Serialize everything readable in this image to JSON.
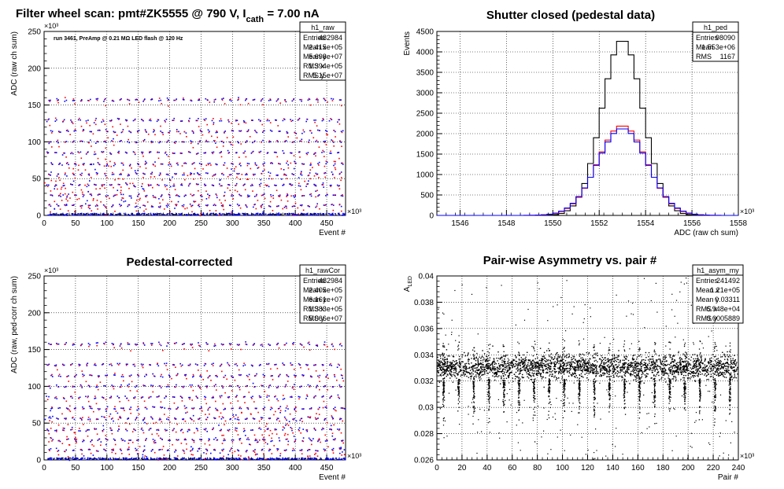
{
  "chart_data": [
    {
      "type": "scatter",
      "title": "Filter wheel scan: pmt#ZK5555 @   790 V, I",
      "title_sub": "cath",
      "title_tail": " = 7.00 nA",
      "annotation": "run 3461, PreAmp @ 0.21 MΩ  LED flash @  120 Hz",
      "xlabel": "Event #",
      "ylabel": "ADC (raw ch sum)",
      "x_exponent": "×10³",
      "y_exponent": "×10³",
      "xlim": [
        0,
        480
      ],
      "ylim": [
        0,
        250
      ],
      "xticks": [
        0,
        50,
        100,
        150,
        200,
        250,
        300,
        350,
        400,
        450
      ],
      "yticks": [
        0,
        50,
        100,
        150,
        200,
        250
      ],
      "stats": {
        "name": "h1_raw",
        "rows": [
          [
            "Entries",
            "482984"
          ],
          [
            "Mean x",
            "2.415e+05"
          ],
          [
            "Mean y",
            "5.698e+07"
          ],
          [
            "RMS x",
            "1.394e+05"
          ],
          [
            "RMS y",
            "5.15e+07"
          ]
        ]
      },
      "levels": [
        1.5,
        14,
        28,
        42,
        57,
        71,
        86,
        101,
        115,
        130,
        158
      ]
    },
    {
      "type": "bar",
      "title": "Shutter closed (pedestal data)",
      "xlabel": "ADC (raw ch sum)",
      "ylabel": "Events",
      "x_exponent": "×10³",
      "xlim": [
        1545,
        1558
      ],
      "ylim": [
        0,
        4500
      ],
      "xticks": [
        1546,
        1548,
        1550,
        1552,
        1554,
        1556,
        1558
      ],
      "yticks": [
        0,
        500,
        1000,
        1500,
        2000,
        2500,
        3000,
        3500,
        4000,
        4500
      ],
      "stats": {
        "name": "h1_ped",
        "rows": [
          [
            "Entries",
            "98090"
          ],
          [
            "Mean",
            "1.553e+06"
          ],
          [
            "RMS",
            "1167"
          ]
        ]
      },
      "series": [
        {
          "color": "#000000",
          "mean": 1553.0,
          "sigma": 0.88,
          "peak": 4300
        },
        {
          "color": "#ff0000",
          "mean": 1553.0,
          "sigma": 1.05,
          "peak": 2200
        },
        {
          "color": "#0000ff",
          "mean": 1553.0,
          "sigma": 1.07,
          "peak": 2130
        }
      ]
    },
    {
      "type": "scatter",
      "title": "Pedestal-corrected",
      "xlabel": "Event #",
      "ylabel": "ADC (raw, ped-corr ch sum)",
      "x_exponent": "×10³",
      "y_exponent": "×10³",
      "xlim": [
        0,
        480
      ],
      "ylim": [
        0,
        250
      ],
      "xticks": [
        0,
        50,
        100,
        150,
        200,
        250,
        300,
        350,
        400,
        450
      ],
      "yticks": [
        0,
        50,
        100,
        150,
        200,
        250
      ],
      "stats": {
        "name": "h1_rawCor",
        "rows": [
          [
            "Entries",
            "482984"
          ],
          [
            "Mean x",
            "2.405e+05"
          ],
          [
            "Mean y",
            "6.161e+07"
          ],
          [
            "RMS x",
            "1.383e+05"
          ],
          [
            "RMS y",
            "5.066e+07"
          ]
        ]
      },
      "levels": [
        1.5,
        14,
        28,
        42,
        57,
        71,
        86,
        101,
        115,
        130,
        158
      ]
    },
    {
      "type": "scatter",
      "title": "Pair-wise Asymmetry vs. pair #",
      "xlabel": "Pair #",
      "ylabel": "A",
      "ylabel_sub": "LED",
      "x_exponent": "×10³",
      "xlim": [
        0,
        240
      ],
      "ylim": [
        0.026,
        0.04
      ],
      "xticks": [
        0,
        20,
        40,
        60,
        80,
        100,
        120,
        140,
        160,
        180,
        200,
        220,
        240
      ],
      "yticks": [
        "0.026",
        "0.028",
        "0.03",
        "0.032",
        "0.034",
        "0.036",
        "0.038",
        "0.04"
      ],
      "stats": {
        "name": "h1_asym_my",
        "rows": [
          [
            "Entries",
            "241492"
          ],
          [
            "Mean x",
            "1.21e+05"
          ],
          [
            "Mean y",
            "0.03311"
          ],
          [
            "RMS x",
            "6.948e+04"
          ],
          [
            "RMS y",
            "0.0005889"
          ]
        ]
      },
      "band": [
        0.0323,
        0.0339
      ],
      "spike_x": [
        5,
        17,
        29,
        41,
        53,
        65,
        77,
        89,
        101,
        113,
        125,
        137,
        149,
        161,
        173,
        185,
        197,
        209,
        221,
        233
      ]
    }
  ]
}
